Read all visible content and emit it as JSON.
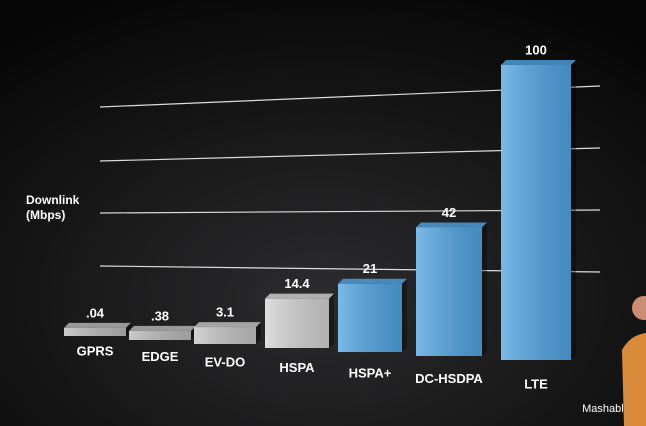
{
  "chart_data": {
    "type": "bar",
    "y_label": "Downlink\n(Mbps)",
    "categories": [
      "GPRS",
      "EDGE",
      "EV-DO",
      "HSPA",
      "HSPA+",
      "DC-HSDPA",
      "LTE"
    ],
    "values": [
      0.04,
      0.38,
      3.1,
      14.4,
      21,
      42,
      100
    ],
    "value_labels": [
      ".04",
      ".38",
      "3.1",
      "14.4",
      "21",
      "42",
      "100"
    ],
    "colors": [
      "#b9b9b9",
      "#b9b9b9",
      "#c4c4c4",
      "#d2d2d2",
      "#4fa3e0",
      "#4fa3e0",
      "#4fa3e0"
    ],
    "ylim": [
      0,
      100
    ],
    "watermark": "Mashable"
  }
}
